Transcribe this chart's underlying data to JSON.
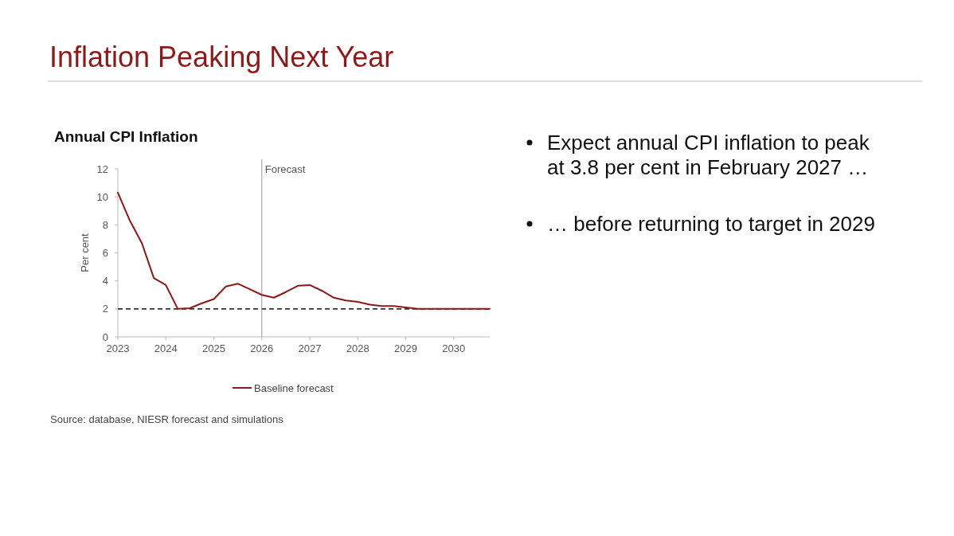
{
  "chart_data": {
    "type": "line",
    "title": "Annual CPI Inflation",
    "subtitle": "Inflation Peaking Next Year",
    "ylabel": "Per cent",
    "x": [
      2023,
      2023.25,
      2023.5,
      2023.75,
      2024,
      2024.25,
      2024.5,
      2024.75,
      2025,
      2025.25,
      2025.5,
      2025.75,
      2026,
      2026.25,
      2026.5,
      2026.75,
      2027,
      2027.25,
      2027.5,
      2027.75,
      2028,
      2028.25,
      2028.5,
      2028.75,
      2029,
      2029.25,
      2029.5,
      2029.75,
      2030,
      2030.25,
      2030.5,
      2030.75
    ],
    "series": [
      {
        "name": "Baseline forecast",
        "color": "#8b1a1a",
        "values": [
          10.3,
          8.3,
          6.7,
          4.2,
          3.7,
          2.0,
          2.05,
          2.4,
          2.7,
          3.6,
          3.8,
          3.4,
          3.0,
          2.8,
          3.2,
          3.65,
          3.7,
          3.3,
          2.8,
          2.6,
          2.5,
          2.3,
          2.2,
          2.2,
          2.1,
          2.0,
          2.0,
          2.0,
          2.0,
          2.0,
          2.0,
          2.0
        ]
      }
    ],
    "xlim": [
      2023,
      2030.75
    ],
    "xticks": [
      2023,
      2024,
      2025,
      2026,
      2027,
      2028,
      2029,
      2030
    ],
    "ylim": [
      0,
      12
    ],
    "yticks": [
      0,
      2,
      4,
      6,
      8,
      10,
      12
    ],
    "grid": false,
    "legend": "bottom",
    "marker": "none",
    "line_style": "solid",
    "ref_lines": [
      {
        "axis": "y",
        "value": 2,
        "label": null,
        "color": "#333333",
        "line_style": "dashed"
      },
      {
        "axis": "x",
        "value": 2026,
        "label": "Forecast",
        "color": "#999999",
        "line_style": "solid"
      }
    ],
    "annotations": [
      "Expect annual CPI inflation to peak at 3.8 per cent in February 2027 …",
      "… before returning to target in 2029",
      "Source: database, NIESR forecast and simulations"
    ]
  }
}
